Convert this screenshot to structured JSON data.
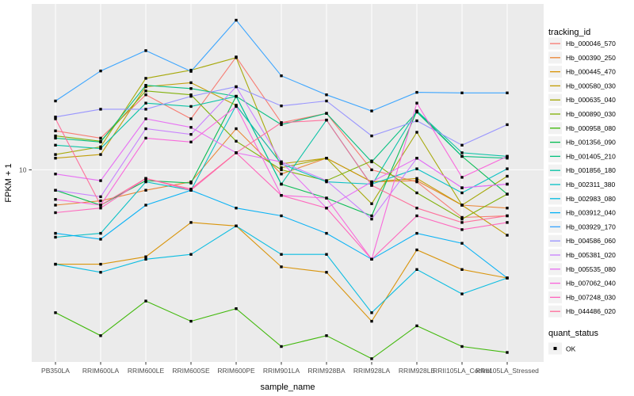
{
  "figure": {
    "background": "#FFFFFF",
    "panel_background": "#EBEBEB",
    "grid_color": "#FFFFFF",
    "axis_text_color": "#4D4D4D",
    "tick_color": "#333333",
    "title_text_color": "#000000",
    "legend_key_fill": "#F2F2F2",
    "point_color": "#000000"
  },
  "chart_data": {
    "type": "line",
    "title": "",
    "xlabel": "sample_name",
    "ylabel": "FPKM + 1",
    "y_scale": "log10",
    "y_ticks": [
      10
    ],
    "ylim": [
      1.55,
      50
    ],
    "grid": "major-on",
    "legend_position": "right",
    "legend_title": "tracking_id",
    "quant_legend": {
      "title": "quant_status",
      "items": [
        {
          "label": "OK",
          "marker": "black-square"
        }
      ]
    },
    "categories": [
      "PB350LA",
      "RRIM600LA",
      "RRIM600LE",
      "RRIM600SE",
      "RRIM600PE",
      "RRIM901LA",
      "RRIM928BA",
      "RRIM928LA",
      "RRIM928LE",
      "RRII105LA_Control",
      "RRII105LA_Stressed"
    ],
    "series": [
      {
        "name": "Hb_000046_570",
        "color": "#F8766D",
        "values": [
          14.6,
          13.6,
          20.7,
          16.4,
          29.9,
          15.8,
          17.3,
          10.0,
          8.9,
          6.3,
          6.4
        ]
      },
      {
        "name": "Hb_000390_250",
        "color": "#EA8331",
        "values": [
          7.1,
          7.4,
          8.2,
          8.9,
          14.9,
          9.6,
          11.2,
          8.9,
          9.0,
          7.1,
          6.9
        ]
      },
      {
        "name": "Hb_000445_470",
        "color": "#D89000",
        "values": [
          4.0,
          4.0,
          4.3,
          6.0,
          5.8,
          3.9,
          3.7,
          2.3,
          4.6,
          3.8,
          3.5
        ]
      },
      {
        "name": "Hb_000580_030",
        "color": "#C09B00",
        "values": [
          11.2,
          11.6,
          22.4,
          23.3,
          18.7,
          10.6,
          11.2,
          8.9,
          9.2,
          7.1,
          5.3
        ]
      },
      {
        "name": "Hb_000635_040",
        "color": "#A3A500",
        "values": [
          11.6,
          12.5,
          24.3,
          26.3,
          29.7,
          10.2,
          11.2,
          7.2,
          14.4,
          7.1,
          9.4
        ]
      },
      {
        "name": "Hb_000890_030",
        "color": "#7CAE00",
        "values": [
          13.9,
          13.2,
          21.5,
          20.7,
          13.2,
          10.0,
          9.0,
          10.9,
          8.0,
          6.2,
          7.9
        ]
      },
      {
        "name": "Hb_000958_080",
        "color": "#39B600",
        "values": [
          2.5,
          2.0,
          2.8,
          2.3,
          2.6,
          1.8,
          2.0,
          1.6,
          2.2,
          1.8,
          1.7
        ]
      },
      {
        "name": "Hb_001356_090",
        "color": "#00BB4E",
        "values": [
          8.2,
          7.1,
          9.0,
          8.8,
          20.4,
          8.7,
          7.6,
          6.4,
          17.7,
          11.4,
          7.9
        ]
      },
      {
        "name": "Hb_001405_210",
        "color": "#00BF7D",
        "values": [
          13.6,
          13.1,
          22.7,
          22.0,
          20.4,
          15.5,
          17.3,
          10.8,
          17.5,
          11.4,
          11.2
        ]
      },
      {
        "name": "Hb_001856_180",
        "color": "#00C1A3",
        "values": [
          12.7,
          12.3,
          19.1,
          18.5,
          20.4,
          8.7,
          16.2,
          8.6,
          17.7,
          11.8,
          11.4
        ]
      },
      {
        "name": "Hb_002311_380",
        "color": "#00BFC4",
        "values": [
          5.2,
          5.4,
          8.9,
          8.2,
          18.7,
          10.6,
          8.9,
          8.7,
          10.1,
          8.0,
          10.1
        ]
      },
      {
        "name": "Hb_002983_080",
        "color": "#00BAE0",
        "values": [
          4.0,
          3.7,
          4.2,
          4.4,
          5.8,
          4.4,
          4.4,
          2.5,
          3.8,
          3.0,
          3.5
        ]
      },
      {
        "name": "Hb_003912_040",
        "color": "#00B0F6",
        "values": [
          5.4,
          5.1,
          7.1,
          8.2,
          6.9,
          6.4,
          5.4,
          4.2,
          5.4,
          4.9,
          3.5
        ]
      },
      {
        "name": "Hb_003929_170",
        "color": "#35A2FF",
        "values": [
          19.5,
          26.1,
          31.8,
          26.0,
          42.7,
          24.9,
          20.7,
          17.7,
          21.2,
          21.1,
          21.1
        ]
      },
      {
        "name": "Hb_004586_060",
        "color": "#9590FF",
        "values": [
          16.7,
          18.0,
          18.0,
          20.4,
          22.4,
          18.6,
          19.5,
          13.9,
          16.1,
          12.7,
          15.5
        ]
      },
      {
        "name": "Hb_005381_020",
        "color": "#C77CFF",
        "values": [
          8.2,
          7.7,
          14.9,
          14.1,
          22.4,
          10.8,
          9.0,
          6.2,
          11.2,
          8.4,
          8.7
        ]
      },
      {
        "name": "Hb_005535_080",
        "color": "#E76BF3",
        "values": [
          9.6,
          9.0,
          16.4,
          15.1,
          11.8,
          10.8,
          6.9,
          8.9,
          11.2,
          8.4,
          8.7
        ]
      },
      {
        "name": "Hb_007062_040",
        "color": "#FA62DB",
        "values": [
          7.5,
          7.1,
          13.6,
          13.1,
          18.5,
          7.8,
          7.6,
          4.2,
          19.1,
          9.3,
          11.4
        ]
      },
      {
        "name": "Hb_007248_030",
        "color": "#FF62BC",
        "values": [
          6.6,
          6.9,
          9.2,
          8.2,
          11.8,
          7.8,
          6.9,
          4.2,
          6.4,
          5.6,
          6.0
        ]
      },
      {
        "name": "Hb_044486_020",
        "color": "#FF6A98",
        "values": [
          16.4,
          7.1,
          9.2,
          8.3,
          11.8,
          15.8,
          16.2,
          8.6,
          6.9,
          6.0,
          6.4
        ]
      }
    ]
  }
}
